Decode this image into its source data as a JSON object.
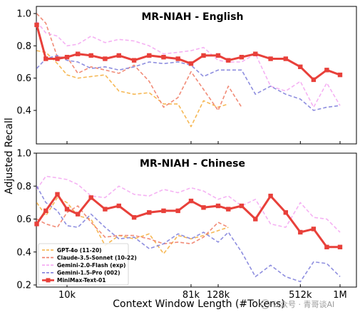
{
  "figure": {
    "ylabel": "Adjusted Recall",
    "xlabel": "Context Window Length (#Tokens)",
    "watermark": "公众号 · 青哥谈AI"
  },
  "chart_data": [
    {
      "type": "line",
      "title": "MR-NIAH - English",
      "xlabel": "Context Window Length (#Tokens)",
      "ylabel": "Adjusted Recall",
      "x_scale": "log",
      "x_ticks": [
        {
          "value": 10000,
          "label": "10k"
        },
        {
          "value": 81000,
          "label": "81k"
        },
        {
          "value": 128000,
          "label": "128k"
        },
        {
          "value": 512000,
          "label": "512k"
        },
        {
          "value": 1000000,
          "label": "1M"
        }
      ],
      "y_ticks": [
        0.4,
        0.6,
        0.8,
        1.0
      ],
      "ylim": [
        0.25,
        1.02
      ],
      "grid": false,
      "legend": "none",
      "series": [
        {
          "name": "GPT-4o (11-20)",
          "color": "#f5b042",
          "dash": "dash",
          "x": [
            6000,
            7000,
            8500,
            10000,
            12000,
            15000,
            19000,
            24000,
            31000,
            40000,
            51000,
            65000,
            81000,
            100000,
            128000,
            152000
          ],
          "y": [
            0.77,
            0.76,
            0.69,
            0.62,
            0.6,
            0.61,
            0.62,
            0.52,
            0.5,
            0.51,
            0.44,
            0.44,
            0.3,
            0.46,
            0.42,
            0.44
          ]
        },
        {
          "name": "Claude-3.5-Sonnet (10-22)",
          "color": "#f07e68",
          "dash": "dash",
          "x": [
            6000,
            7000,
            8500,
            10000,
            12000,
            15000,
            19000,
            24000,
            31000,
            40000,
            51000,
            65000,
            81000,
            100000,
            128000,
            152000,
            190000
          ],
          "y": [
            1.0,
            0.94,
            0.73,
            0.73,
            0.63,
            0.67,
            0.65,
            0.63,
            0.68,
            0.58,
            0.42,
            0.48,
            0.64,
            0.53,
            0.4,
            0.55,
            0.42
          ]
        },
        {
          "name": "Gemini-2.0-Flash (exp)",
          "color": "#f4a8f2",
          "dash": "dash",
          "x": [
            6000,
            7000,
            8500,
            10000,
            12000,
            15000,
            19000,
            24000,
            31000,
            40000,
            51000,
            65000,
            81000,
            100000,
            128000,
            152000,
            190000,
            240000,
            310000,
            400000,
            512000,
            640000,
            800000,
            1000000
          ],
          "y": [
            0.95,
            0.88,
            0.86,
            0.8,
            0.81,
            0.86,
            0.82,
            0.84,
            0.83,
            0.8,
            0.75,
            0.76,
            0.77,
            0.79,
            0.71,
            0.7,
            0.7,
            0.75,
            0.55,
            0.52,
            0.58,
            0.42,
            0.57,
            0.43
          ]
        },
        {
          "name": "Gemini-1.5-Pro (002)",
          "color": "#8282dc",
          "dash": "dash",
          "x": [
            6000,
            7000,
            8500,
            10000,
            12000,
            15000,
            19000,
            24000,
            31000,
            40000,
            51000,
            65000,
            81000,
            100000,
            128000,
            152000,
            190000,
            240000,
            310000,
            400000,
            512000,
            640000,
            800000,
            1000000
          ],
          "y": [
            0.66,
            0.72,
            0.74,
            0.71,
            0.7,
            0.66,
            0.67,
            0.65,
            0.67,
            0.7,
            0.69,
            0.7,
            0.68,
            0.61,
            0.65,
            0.65,
            0.65,
            0.5,
            0.55,
            0.5,
            0.47,
            0.4,
            0.42,
            0.43
          ]
        },
        {
          "name": "MiniMax-Text-01",
          "color": "#e8403a",
          "dash": "solid",
          "marker": "square",
          "x": [
            6000,
            7000,
            8500,
            10000,
            12000,
            15000,
            19000,
            24000,
            31000,
            40000,
            51000,
            65000,
            81000,
            100000,
            128000,
            152000,
            190000,
            240000,
            310000,
            400000,
            512000,
            640000,
            800000,
            1000000
          ],
          "y": [
            0.93,
            0.72,
            0.72,
            0.73,
            0.75,
            0.74,
            0.72,
            0.74,
            0.71,
            0.74,
            0.73,
            0.72,
            0.69,
            0.74,
            0.74,
            0.71,
            0.73,
            0.75,
            0.72,
            0.72,
            0.67,
            0.59,
            0.65,
            0.62
          ]
        }
      ]
    },
    {
      "type": "line",
      "title": "MR-NIAH - Chinese",
      "xlabel": "Context Window Length (#Tokens)",
      "ylabel": "Adjusted Recall",
      "x_scale": "log",
      "x_ticks": [
        {
          "value": 10000,
          "label": "10k"
        },
        {
          "value": 81000,
          "label": "81k"
        },
        {
          "value": 128000,
          "label": "128k"
        },
        {
          "value": 512000,
          "label": "512k"
        },
        {
          "value": 1000000,
          "label": "1M"
        }
      ],
      "y_ticks": [
        0.2,
        0.4,
        0.6,
        0.8,
        1.0
      ],
      "ylim": [
        0.2,
        1.0
      ],
      "grid": false,
      "legend": "bottom-left",
      "series": [
        {
          "name": "GPT-4o (11-20)",
          "color": "#f5b042",
          "dash": "dash",
          "x": [
            6000,
            7000,
            8500,
            10000,
            12000,
            15000,
            19000,
            24000,
            31000,
            40000,
            51000,
            65000,
            81000,
            100000,
            128000,
            152000
          ],
          "y": [
            0.7,
            0.62,
            0.73,
            0.7,
            0.62,
            0.6,
            0.44,
            0.5,
            0.48,
            0.51,
            0.39,
            0.5,
            0.48,
            0.5,
            0.53,
            0.55
          ]
        },
        {
          "name": "Claude-3.5-Sonnet (10-22)",
          "color": "#f07e68",
          "dash": "dash",
          "x": [
            6000,
            7000,
            8500,
            10000,
            12000,
            15000,
            19000,
            24000,
            31000,
            40000,
            51000,
            65000,
            81000,
            100000,
            128000,
            152000
          ],
          "y": [
            0.6,
            0.57,
            0.55,
            0.64,
            0.68,
            0.58,
            0.49,
            0.5,
            0.5,
            0.48,
            0.45,
            0.46,
            0.45,
            0.49,
            0.58,
            0.55
          ]
        },
        {
          "name": "Gemini-2.0-Flash (exp)",
          "color": "#f4a8f2",
          "dash": "dash",
          "x": [
            6000,
            7000,
            8500,
            10000,
            12000,
            15000,
            19000,
            24000,
            31000,
            40000,
            51000,
            65000,
            81000,
            100000,
            128000,
            152000,
            190000,
            240000,
            310000,
            400000,
            512000,
            640000,
            800000,
            1000000
          ],
          "y": [
            0.78,
            0.86,
            0.85,
            0.84,
            0.81,
            0.74,
            0.73,
            0.8,
            0.75,
            0.74,
            0.78,
            0.76,
            0.79,
            0.77,
            0.72,
            0.74,
            0.68,
            0.72,
            0.57,
            0.55,
            0.7,
            0.61,
            0.6,
            0.52
          ]
        },
        {
          "name": "Gemini-1.5-Pro (002)",
          "color": "#8282dc",
          "dash": "dash",
          "x": [
            6000,
            7000,
            8500,
            10000,
            12000,
            15000,
            19000,
            24000,
            31000,
            40000,
            51000,
            65000,
            81000,
            100000,
            128000,
            152000,
            190000,
            240000,
            310000,
            400000,
            512000,
            640000,
            800000,
            1000000
          ],
          "y": [
            0.8,
            0.7,
            0.65,
            0.56,
            0.55,
            0.63,
            0.55,
            0.48,
            0.49,
            0.42,
            0.45,
            0.51,
            0.48,
            0.52,
            0.46,
            0.52,
            0.4,
            0.25,
            0.32,
            0.25,
            0.22,
            0.34,
            0.33,
            0.25
          ]
        },
        {
          "name": "MiniMax-Text-01",
          "color": "#e8403a",
          "dash": "solid",
          "marker": "square",
          "x": [
            6000,
            7000,
            8500,
            10000,
            12000,
            15000,
            19000,
            24000,
            31000,
            40000,
            51000,
            65000,
            81000,
            100000,
            128000,
            152000,
            190000,
            240000,
            310000,
            400000,
            512000,
            640000,
            800000,
            1000000
          ],
          "y": [
            0.57,
            0.65,
            0.75,
            0.66,
            0.63,
            0.73,
            0.66,
            0.68,
            0.61,
            0.64,
            0.65,
            0.65,
            0.71,
            0.67,
            0.68,
            0.66,
            0.68,
            0.6,
            0.74,
            0.64,
            0.52,
            0.54,
            0.43,
            0.43
          ]
        }
      ]
    }
  ]
}
